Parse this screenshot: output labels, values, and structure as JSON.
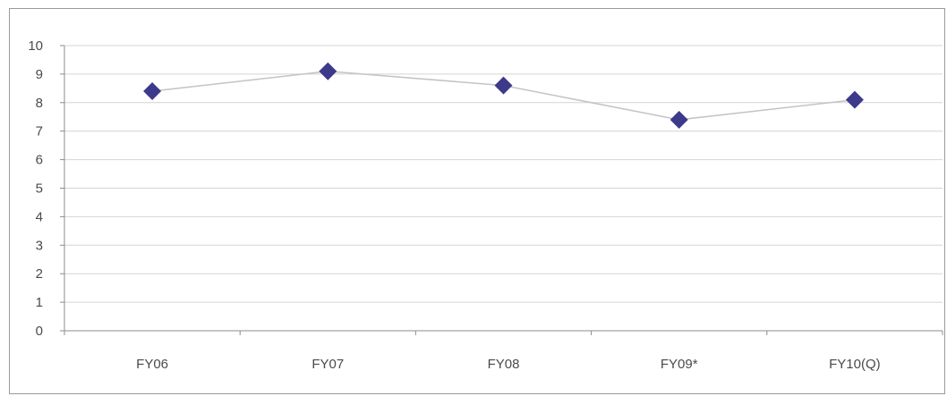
{
  "chart_data": {
    "type": "line",
    "categories": [
      "FY06",
      "FY07",
      "FY08",
      "FY09*",
      "FY10(Q)"
    ],
    "series": [
      {
        "values": [
          8.4,
          9.1,
          8.6,
          7.4,
          8.1
        ]
      }
    ],
    "title": "",
    "xlabel": "",
    "ylabel": "",
    "ylim": [
      0,
      10
    ],
    "yticks": [
      0,
      1,
      2,
      3,
      4,
      5,
      6,
      7,
      8,
      9,
      10
    ],
    "grid": true,
    "legend": "none",
    "colors": {
      "marker": "#3d3a8c",
      "line": "#c3c3c8",
      "grid": "#d4d4d4",
      "axis": "#8c8c8c"
    },
    "marker_shape": "diamond"
  }
}
